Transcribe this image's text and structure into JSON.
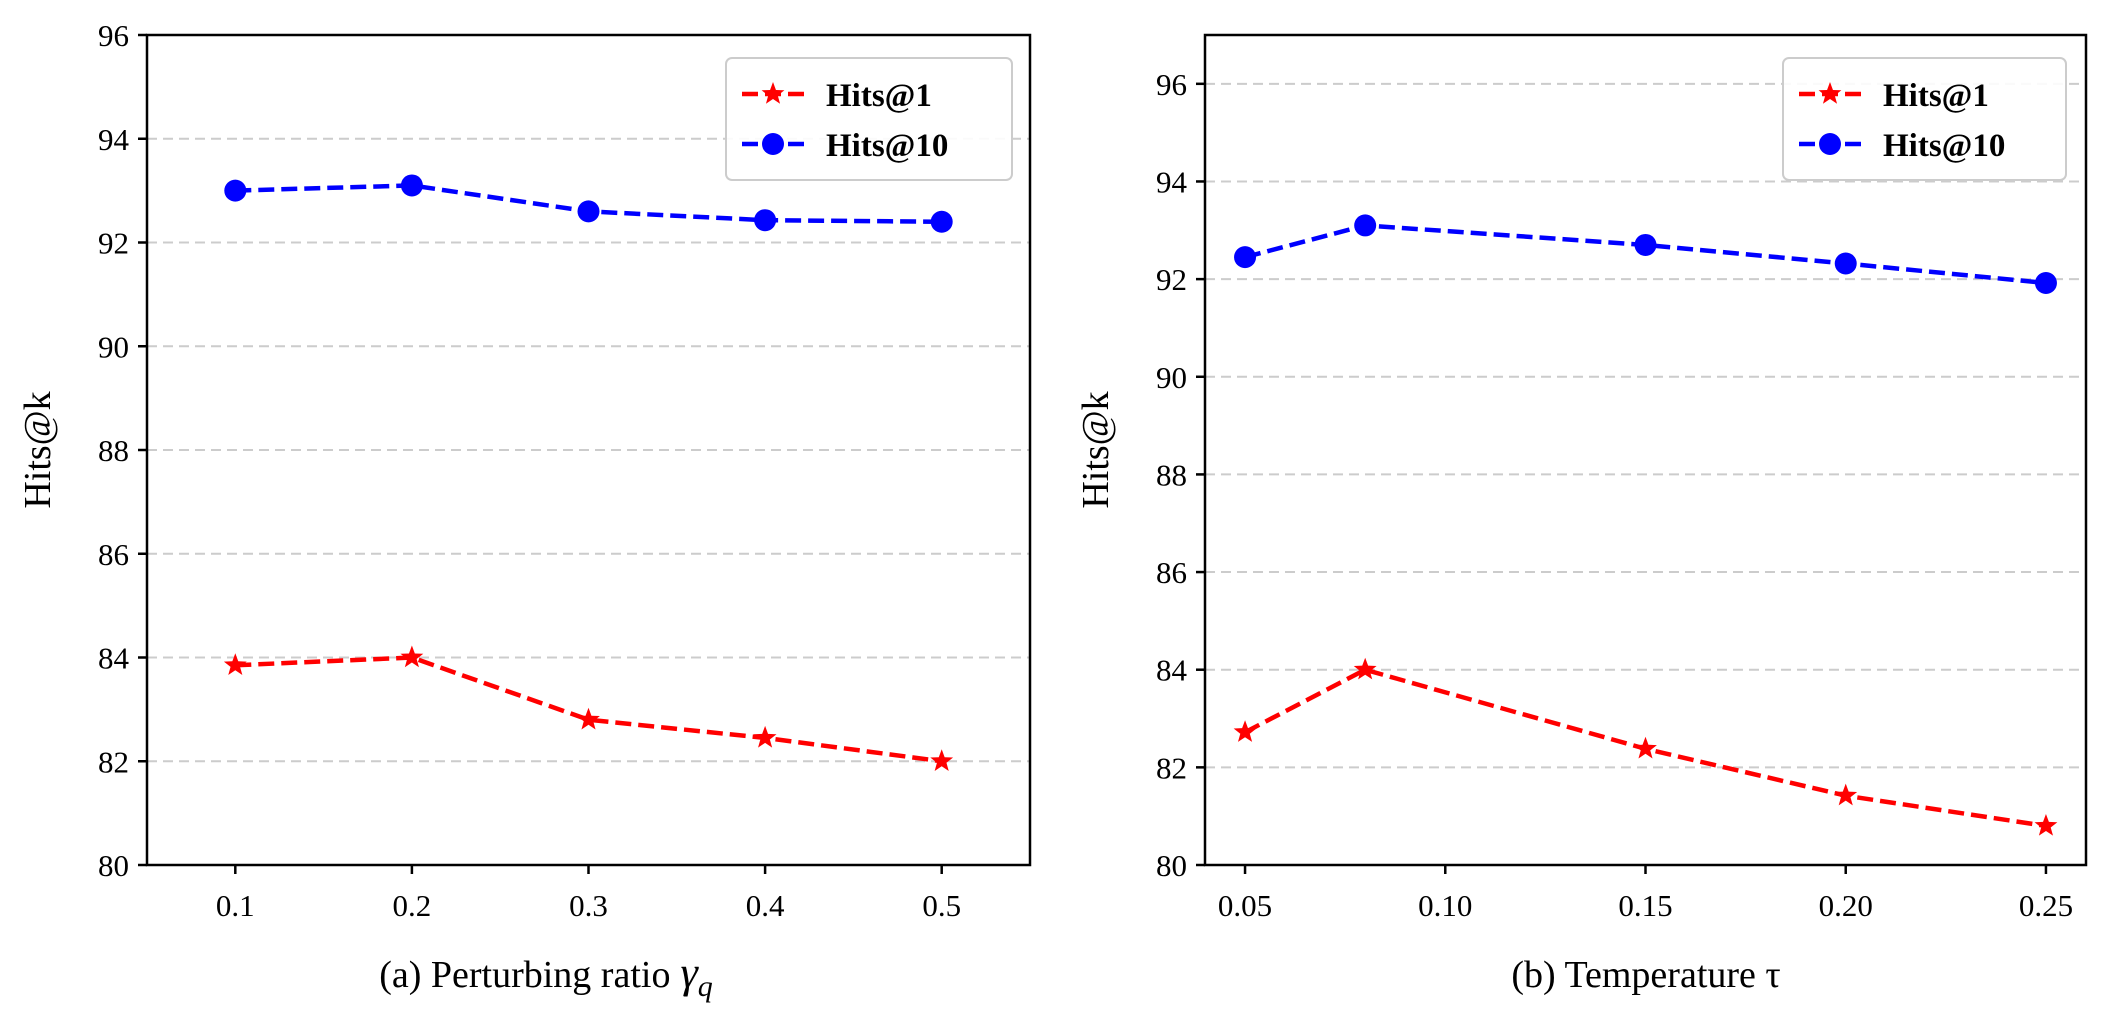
{
  "chart_data": [
    {
      "type": "line",
      "title": "",
      "xlabel": "(a) Perturbing ratio",
      "xlabel_symbol": "γ",
      "xlabel_subscript": "q",
      "ylabel": "Hits@k",
      "x": [
        0.1,
        0.2,
        0.3,
        0.4,
        0.5
      ],
      "x_tick_labels": [
        "0.1",
        "0.2",
        "0.3",
        "0.4",
        "0.5"
      ],
      "xlim": [
        0.05,
        0.55
      ],
      "ylim": [
        80,
        96
      ],
      "y_ticks": [
        80,
        82,
        84,
        86,
        88,
        90,
        92,
        94,
        96
      ],
      "y_tick_labels": [
        "80",
        "82",
        "84",
        "86",
        "88",
        "90",
        "92",
        "94",
        "96"
      ],
      "grid": "y",
      "legend_position": "top-right",
      "series": [
        {
          "name": "Hits@1",
          "color": "#ff0000",
          "marker": "star",
          "linestyle": "dashed",
          "values": [
            83.85,
            84.0,
            82.8,
            82.45,
            82.0
          ]
        },
        {
          "name": "Hits@10",
          "color": "#0000ff",
          "marker": "circle",
          "linestyle": "dashed",
          "values": [
            93.0,
            93.1,
            92.6,
            92.43,
            92.4
          ]
        }
      ]
    },
    {
      "type": "line",
      "title": "",
      "xlabel": "(b) Temperature τ",
      "ylabel": "Hits@k",
      "x": [
        0.05,
        0.08,
        0.15,
        0.2,
        0.25
      ],
      "x_ticks": [
        0.05,
        0.1,
        0.15,
        0.2,
        0.25
      ],
      "x_tick_labels": [
        "0.05",
        "0.10",
        "0.15",
        "0.20",
        "0.25"
      ],
      "xlim": [
        0.04,
        0.26
      ],
      "ylim": [
        80,
        97
      ],
      "y_ticks": [
        80,
        82,
        84,
        86,
        88,
        90,
        92,
        94,
        96
      ],
      "y_tick_labels": [
        "80",
        "82",
        "84",
        "86",
        "88",
        "90",
        "92",
        "94",
        "96"
      ],
      "grid": "y",
      "legend_position": "top-right",
      "series": [
        {
          "name": "Hits@1",
          "color": "#ff0000",
          "marker": "star",
          "linestyle": "dashed",
          "values": [
            82.72,
            84.0,
            82.38,
            81.42,
            80.8
          ]
        },
        {
          "name": "Hits@10",
          "color": "#0000ff",
          "marker": "circle",
          "linestyle": "dashed",
          "values": [
            92.45,
            93.1,
            92.7,
            92.32,
            91.92
          ]
        }
      ]
    }
  ]
}
